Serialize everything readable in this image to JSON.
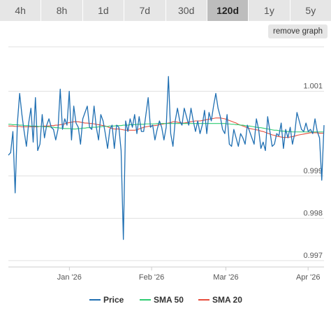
{
  "tabs": [
    {
      "label": "4h",
      "active": false
    },
    {
      "label": "8h",
      "active": false
    },
    {
      "label": "1d",
      "active": false
    },
    {
      "label": "7d",
      "active": false
    },
    {
      "label": "30d",
      "active": false
    },
    {
      "label": "120d",
      "active": true
    },
    {
      "label": "1y",
      "active": false
    },
    {
      "label": "5y",
      "active": false
    }
  ],
  "remove_graph_label": "remove graph",
  "chart_data": {
    "type": "line",
    "x_start": "2025-12-09",
    "x_end": "2026-04-07",
    "xtick_labels": [
      {
        "date": "2026-01-01",
        "label": "Jan '26"
      },
      {
        "date": "2026-02-01",
        "label": "Feb '26"
      },
      {
        "date": "2026-03-01",
        "label": "Mar '26"
      },
      {
        "date": "2026-04-01",
        "label": "Apr '26"
      }
    ],
    "ytick_labels": [
      {
        "value": 1.001,
        "label": "1.001"
      },
      {
        "value": 0.999,
        "label": "0.999"
      },
      {
        "value": 0.998,
        "label": "0.998"
      },
      {
        "value": 0.997,
        "label": "0.997"
      }
    ],
    "ylim": [
      0.99685,
      1.00205
    ],
    "grid": true,
    "legend_position": "bottom",
    "series": [
      {
        "name": "Price",
        "color": "#1f6fb2",
        "values": [
          0.99949,
          0.99955,
          1.00005,
          0.9986,
          1.00025,
          1.00095,
          1.00045,
          1.00005,
          0.9997,
          1.00025,
          1.0006,
          0.9998,
          1.00085,
          0.9996,
          0.99975,
          1.00045,
          0.9999,
          1.0002,
          1.00035,
          1.00015,
          1.0001,
          0.99985,
          1.0001,
          1.00105,
          1.0001,
          1.00035,
          1.0002,
          1.001,
          0.99985,
          1.00065,
          1.00025,
          1.00015,
          0.99975,
          1.00035,
          1.0005,
          1.00065,
          1.00015,
          1.0001,
          1.00065,
          1.00015,
          0.99985,
          1.00045,
          1.0003,
          1.0,
          0.99965,
          1.0001,
          1.0002,
          0.99965,
          1.0002,
          1.00015,
          0.9996,
          0.9975,
          1.0003,
          1.00005,
          1.00035,
          1.00015,
          1.00045,
          1.0,
          1.0004,
          1.00005,
          1.00005,
          1.00045,
          1.00085,
          1.00015,
          1.0002,
          0.99985,
          1.0001,
          1.0003,
          1.00015,
          0.99985,
          1.00015,
          1.00135,
          1.0,
          0.9997,
          1.0003,
          1.0006,
          1.0003,
          1.0002,
          1.0006,
          1.0004,
          1.0002,
          1.0006,
          1.0003,
          1.00005,
          1.0003,
          1.0,
          1.0002,
          1.00055,
          1.0,
          1.0005,
          1.0003,
          1.00065,
          1.00095,
          1.0006,
          1.0004,
          1.0001,
          1.0,
          1.00045,
          0.99975,
          0.9997,
          1.0001,
          0.9999,
          0.9997,
          1.0,
          0.9999,
          0.99975,
          1.0002,
          1.00005,
          0.9999,
          0.99975,
          1.00035,
          1.0001,
          0.99965,
          0.9998,
          0.9996,
          1.0004,
          1.00005,
          0.9997,
          0.99975,
          1.0,
          0.99995,
          1.00025,
          0.99965,
          1.0001,
          0.9999,
          1.00015,
          0.99975,
          1.0,
          1.0005,
          1.0003,
          1.0001,
          1.00005,
          1.00025,
          1.00005,
          1.0001,
          1.0,
          1.00035,
          1.00005,
          0.9999,
          0.9989,
          1.0002
        ]
      },
      {
        "name": "SMA 50",
        "color": "#2ecc71",
        "values": [
          1.00022,
          1.00022,
          1.00021,
          1.00021,
          1.00021,
          1.0002,
          1.0002,
          1.00019,
          1.00019,
          1.00019,
          1.00018,
          1.00018,
          1.00018,
          1.00017,
          1.00017,
          1.00017,
          1.00016,
          1.00016,
          1.00016,
          1.00015,
          1.00015,
          1.00014,
          1.00014,
          1.00013,
          1.00013,
          1.00012,
          1.00012,
          1.00012,
          1.00011,
          1.00011,
          1.00011,
          1.00012,
          1.00012,
          1.00013,
          1.00013,
          1.00014,
          1.00014,
          1.00015,
          1.00015,
          1.00015,
          1.00016,
          1.00016,
          1.00017,
          1.00017,
          1.00017,
          1.00018,
          1.00018,
          1.00018,
          1.00019,
          1.00019,
          1.00019,
          1.0002,
          1.0002,
          1.0002,
          1.00021,
          1.00021,
          1.00021,
          1.00022,
          1.00022,
          1.00022,
          1.00022,
          1.00023,
          1.00023,
          1.00023,
          1.00023,
          1.00023,
          1.00024,
          1.00024,
          1.00024,
          1.00024,
          1.00024,
          1.00024,
          1.00024,
          1.00024,
          1.00024,
          1.00024,
          1.00024,
          1.00024,
          1.00024,
          1.00024,
          1.00024,
          1.00024,
          1.00024,
          1.00024,
          1.00024,
          1.00024,
          1.00024,
          1.00024,
          1.00024,
          1.00024,
          1.00024,
          1.00024,
          1.00024,
          1.00024,
          1.00024,
          1.00024,
          1.00024,
          1.00023,
          1.00023,
          1.00022,
          1.00022,
          1.00021,
          1.00021,
          1.0002,
          1.0002,
          1.00019,
          1.00018,
          1.00018,
          1.00017,
          1.00016,
          1.00015,
          1.00014,
          1.00014,
          1.00013,
          1.00012,
          1.00011,
          1.0001,
          1.00009,
          1.00008,
          1.00008,
          1.00007,
          1.00006,
          1.00006,
          1.00005,
          1.00005,
          1.00005,
          1.00004,
          1.00004,
          1.00004,
          1.00004,
          1.00004,
          1.00004,
          1.00004,
          1.00004,
          1.00004,
          1.00004,
          1.00004,
          1.00004,
          1.00004,
          1.00004,
          1.00004
        ]
      },
      {
        "name": "SMA 20",
        "color": "#e74c3c",
        "values": [
          1.00018,
          1.00018,
          1.00018,
          1.00017,
          1.00017,
          1.00017,
          1.00016,
          1.00016,
          1.00016,
          1.00016,
          1.00016,
          1.00016,
          1.00016,
          1.00016,
          1.00017,
          1.00017,
          1.00018,
          1.00018,
          1.00018,
          1.00019,
          1.00019,
          1.0002,
          1.0002,
          1.00021,
          1.00022,
          1.00023,
          1.00025,
          1.00026,
          1.00027,
          1.00028,
          1.00028,
          1.00028,
          1.00027,
          1.00026,
          1.00025,
          1.00025,
          1.00024,
          1.00024,
          1.00023,
          1.00022,
          1.00021,
          1.0002,
          1.00019,
          1.00018,
          1.00016,
          1.00014,
          1.00012,
          1.00011,
          1.00011,
          1.00011,
          1.0001,
          1.00009,
          1.00008,
          1.00008,
          1.00008,
          1.00008,
          1.00008,
          1.00009,
          1.00011,
          1.00013,
          1.00015,
          1.00016,
          1.00017,
          1.00018,
          1.00019,
          1.00019,
          1.0002,
          1.00021,
          1.00022,
          1.00023,
          1.00024,
          1.00025,
          1.00026,
          1.00028,
          1.00028,
          1.00027,
          1.00026,
          1.00025,
          1.00025,
          1.00026,
          1.00027,
          1.00028,
          1.00029,
          1.0003,
          1.0003,
          1.0003,
          1.00031,
          1.00032,
          1.00033,
          1.00034,
          1.00035,
          1.00036,
          1.00037,
          1.00037,
          1.00037,
          1.00036,
          1.00035,
          1.00033,
          1.00031,
          1.00029,
          1.00027,
          1.00025,
          1.00022,
          1.0002,
          1.00018,
          1.00016,
          1.00014,
          1.00012,
          1.00011,
          1.0001,
          1.00009,
          1.00008,
          1.00006,
          1.00005,
          1.00003,
          1.00001,
          0.99999,
          0.99997,
          0.99996,
          0.99994,
          0.99993,
          0.99992,
          0.99991,
          0.99991,
          0.99991,
          0.99992,
          0.99993,
          0.99994,
          0.99996,
          0.99997,
          0.99998,
          0.99999,
          1.0,
          1.00001,
          1.00002,
          1.00002,
          1.00002,
          1.00002,
          1.00001,
          1.00001,
          1.00001
        ]
      }
    ]
  }
}
